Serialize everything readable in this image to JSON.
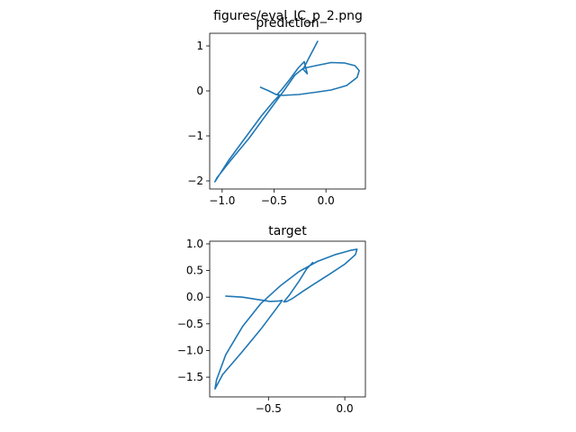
{
  "figure": {
    "suptitle": "figures/eval_IC_p_2.png"
  },
  "chart_data": [
    {
      "type": "line",
      "title": "prediction",
      "xlabel": "",
      "ylabel": "",
      "xlim": [
        -1.12,
        0.38
      ],
      "ylim": [
        -2.18,
        1.28
      ],
      "xticks": [
        -1.0,
        -0.5,
        0.0
      ],
      "xtick_labels": [
        "−1.0",
        "−0.5",
        "0.0"
      ],
      "yticks": [
        -2,
        -1,
        0,
        1
      ],
      "ytick_labels": [
        "−2",
        "−1",
        "0",
        "1"
      ],
      "grid": false,
      "color": "#1f77b4",
      "series": [
        {
          "x": [
            -0.63,
            -0.55,
            -0.48,
            -0.45,
            -0.5,
            -0.62,
            -0.78,
            -0.94,
            -1.07,
            -1.05,
            -0.92,
            -0.74,
            -0.55,
            -0.4,
            -0.3,
            -0.22,
            -0.1,
            0.05,
            0.18,
            0.28,
            0.32,
            0.3,
            0.2,
            0.05,
            -0.1,
            -0.26,
            -0.42,
            -0.47,
            -0.43,
            -0.35,
            -0.27,
            -0.21,
            -0.18,
            -0.22,
            -0.16,
            -0.08
          ],
          "y": [
            0.08,
            0.0,
            -0.08,
            -0.1,
            -0.22,
            -0.55,
            -1.05,
            -1.55,
            -2.02,
            -1.93,
            -1.55,
            -1.05,
            -0.45,
            0.02,
            0.35,
            0.5,
            0.56,
            0.63,
            0.62,
            0.56,
            0.45,
            0.3,
            0.12,
            0.02,
            -0.03,
            -0.08,
            -0.1,
            -0.08,
            0.02,
            0.25,
            0.5,
            0.65,
            0.38,
            0.48,
            0.75,
            1.1
          ]
        }
      ]
    },
    {
      "type": "line",
      "title": "target",
      "xlabel": "",
      "ylabel": "",
      "xlim": [
        -0.885,
        0.135
      ],
      "ylim": [
        -1.87,
        1.05
      ],
      "xticks": [
        -0.5,
        0.0
      ],
      "xtick_labels": [
        "−0.5",
        "0.0"
      ],
      "yticks": [
        -1.5,
        -1.0,
        -0.5,
        0.0,
        0.5,
        1.0
      ],
      "ytick_labels": [
        "−1.5",
        "−1.0",
        "−0.5",
        "0.0",
        "0.5",
        "1.0"
      ],
      "grid": false,
      "color": "#1f77b4",
      "series": [
        {
          "x": [
            -0.78,
            -0.67,
            -0.58,
            -0.49,
            -0.43,
            -0.41,
            -0.45,
            -0.55,
            -0.68,
            -0.8,
            -0.85,
            -0.84,
            -0.78,
            -0.67,
            -0.55,
            -0.42,
            -0.3,
            -0.18,
            -0.06,
            0.04,
            0.08,
            0.07,
            0.0,
            -0.1,
            -0.2,
            -0.28,
            -0.34,
            -0.38,
            -0.4,
            -0.36,
            -0.3,
            -0.25,
            -0.21
          ],
          "y": [
            0.02,
            0.0,
            -0.04,
            -0.08,
            -0.07,
            -0.06,
            -0.22,
            -0.6,
            -1.05,
            -1.45,
            -1.72,
            -1.55,
            -1.08,
            -0.55,
            -0.12,
            0.22,
            0.48,
            0.67,
            0.8,
            0.88,
            0.9,
            0.8,
            0.62,
            0.43,
            0.25,
            0.1,
            -0.02,
            -0.08,
            -0.09,
            0.05,
            0.3,
            0.53,
            0.65
          ]
        }
      ]
    }
  ]
}
